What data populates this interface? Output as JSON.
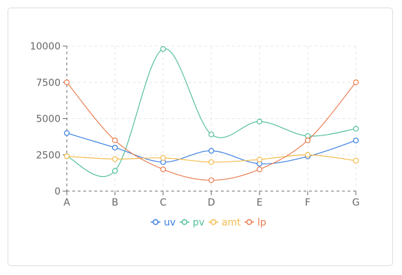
{
  "chart_data": {
    "type": "line",
    "categories": [
      "A",
      "B",
      "C",
      "D",
      "E",
      "F",
      "G"
    ],
    "ylim": [
      0,
      10000
    ],
    "yticks": [
      0,
      2500,
      5000,
      7500,
      10000
    ],
    "grid": true,
    "legend_position": "bottom",
    "series": [
      {
        "name": "uv",
        "color": "#3a7ee0",
        "values": [
          4000,
          3000,
          2000,
          2780,
          1890,
          2390,
          3490
        ]
      },
      {
        "name": "pv",
        "color": "#52bf97",
        "values": [
          2400,
          1398,
          9800,
          3908,
          4800,
          3800,
          4300
        ]
      },
      {
        "name": "amt",
        "color": "#f2bb4c",
        "values": [
          2400,
          2210,
          2290,
          2000,
          2181,
          2500,
          2100
        ]
      },
      {
        "name": "lp",
        "color": "#ea7b4f",
        "values": [
          7500,
          3500,
          1500,
          750,
          1500,
          3500,
          7500
        ]
      }
    ]
  }
}
